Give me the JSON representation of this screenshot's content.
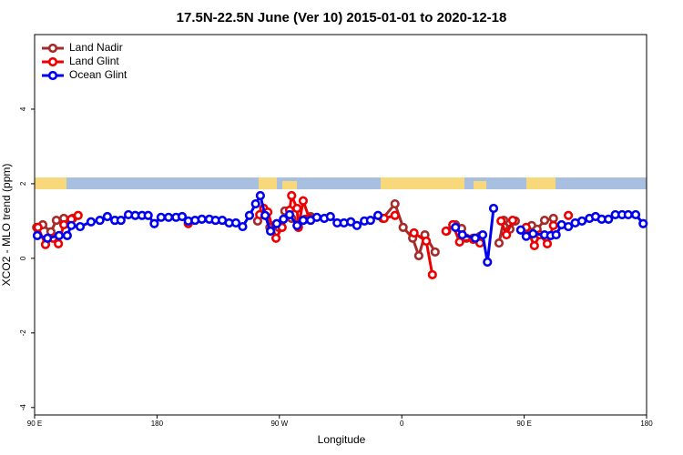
{
  "chart_data": {
    "type": "line",
    "title": "17.5N-22.5N June (Ver 10)   2015-01-01 to 2020-12-18",
    "x_label": "Longitude",
    "y_label": "XCO2 - MLO trend (ppm)",
    "xlim": [
      90,
      540
    ],
    "xticks": [
      {
        "value": 90,
        "label": "90 E"
      },
      180,
      {
        "value": 270,
        "label": "90 W"
      },
      {
        "value": 360,
        "label": "0"
      },
      {
        "value": 450,
        "label": "90 E"
      },
      {
        "value": 540,
        "label": "180"
      }
    ],
    "ylim": [
      -4.2,
      6
    ],
    "yticks": [
      -4,
      -2,
      0,
      2,
      4
    ],
    "legend": "top-left",
    "series": [
      {
        "name": "Land Nadir",
        "color": "#a52a2a",
        "x": [
          91.5,
          96,
          102,
          106,
          111.5,
          118,
          null,
          254,
          258.5,
          263,
          269.5,
          274,
          279,
          284,
          289,
          293,
          null,
          346,
          355,
          361,
          368,
          372.5,
          377,
          384.5,
          null,
          393,
          399.5,
          404,
          407.5,
          412.5,
          417.5,
          null,
          431.5,
          435,
          439.5,
          443.5,
          null,
          455.5,
          459.5,
          465,
          471.5
        ],
        "values": [
          0.83,
          0.9,
          0.71,
          1.02,
          1.07,
          1.07,
          null,
          1.0,
          1.32,
          0.83,
          0.83,
          1.27,
          1.07,
          0.93,
          1.05,
          1.12,
          null,
          1.07,
          1.46,
          0.83,
          0.54,
          0.07,
          0.63,
          0.17,
          null,
          0.73,
          0.9,
          0.8,
          0.54,
          0.54,
          0.59,
          null,
          0.41,
          1.02,
          0.78,
          1.0,
          null,
          0.88,
          0.78,
          1.02,
          1.07
        ]
      },
      {
        "name": "Land Glint",
        "color": "#ee0000",
        "x": [
          92.5,
          98,
          103.5,
          107.5,
          111.5,
          117,
          122,
          null,
          203,
          null,
          255.5,
          258.5,
          261.5,
          267.5,
          272,
          277.5,
          279,
          283,
          284,
          287.5,
          292,
          null,
          347,
          355,
          null,
          369,
          378,
          382.5,
          null,
          392.5,
          397.5,
          402.5,
          412.5,
          417.5,
          null,
          433,
          437,
          441.5,
          null,
          451.5,
          457.5,
          461.5,
          467,
          471.5,
          null,
          482.5
        ],
        "values": [
          0.83,
          0.37,
          0.54,
          0.39,
          0.9,
          1.05,
          1.15,
          null,
          0.93,
          null,
          1.17,
          1.34,
          1.24,
          0.54,
          0.83,
          1.29,
          1.68,
          1.34,
          0.83,
          1.54,
          1.07,
          null,
          1.07,
          1.15,
          null,
          0.68,
          0.46,
          -0.44,
          null,
          0.73,
          0.9,
          0.44,
          0.51,
          0.41,
          null,
          1.0,
          0.63,
          1.02,
          null,
          0.83,
          0.34,
          0.63,
          0.39,
          0.88,
          null,
          1.15
        ]
      },
      {
        "name": "Ocean Glint",
        "color": "#0000ee",
        "x": [
          92,
          99.5,
          108,
          114,
          117,
          123.5,
          131.5,
          138,
          143.5,
          149,
          153.5,
          159,
          164,
          169,
          173.5,
          178,
          183,
          188.5,
          194,
          198.5,
          203,
          208,
          213,
          218.5,
          223,
          228,
          233,
          238,
          243,
          248,
          252.5,
          256,
          259.5,
          263.5,
          268,
          273,
          277.5,
          283,
          287.5,
          293,
          297.5,
          303,
          307.5,
          312.5,
          317.5,
          322.5,
          327,
          332.5,
          337,
          342.5,
          null,
          399.5,
          404.5,
          414,
          419.5,
          423,
          427.5,
          null,
          447.5,
          451.5,
          456.5,
          465,
          469.5,
          473.5,
          477.5,
          482.5,
          487.5,
          492.5,
          498,
          502.5,
          507,
          512,
          517,
          522,
          526.5,
          532,
          537.5
        ],
        "values": [
          0.61,
          0.54,
          0.61,
          0.61,
          0.88,
          0.85,
          0.98,
          1.02,
          1.12,
          1.02,
          1.02,
          1.17,
          1.15,
          1.15,
          1.15,
          0.93,
          1.1,
          1.1,
          1.1,
          1.12,
          1.0,
          1.02,
          1.05,
          1.05,
          1.02,
          1.02,
          0.95,
          0.95,
          0.85,
          1.15,
          1.46,
          1.68,
          1.15,
          0.73,
          0.93,
          1.05,
          1.17,
          0.88,
          1.02,
          1.02,
          1.1,
          1.07,
          1.12,
          0.95,
          0.95,
          0.98,
          0.88,
          1.0,
          1.02,
          1.15,
          null,
          0.83,
          0.63,
          0.54,
          0.63,
          -0.1,
          1.34,
          null,
          0.76,
          0.59,
          0.66,
          0.63,
          0.61,
          0.63,
          0.9,
          0.85,
          0.95,
          1.0,
          1.07,
          1.12,
          1.05,
          1.05,
          1.17,
          1.17,
          1.17,
          1.17,
          0.93
        ]
      }
    ]
  }
}
